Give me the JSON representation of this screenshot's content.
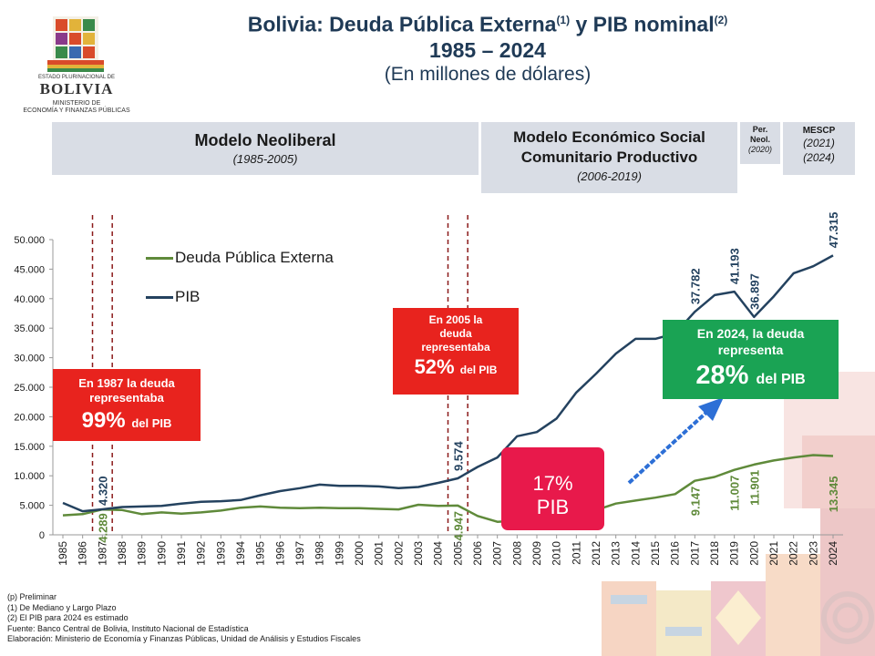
{
  "logo": {
    "top_text": "ESTADO PLURINACIONAL DE",
    "country": "BOLIVIA",
    "ministry_line1": "MINISTERIO DE",
    "ministry_line2": "ECONOMÍA Y FINANZAS PÚBLICAS"
  },
  "header": {
    "title_main": "Bolivia: Deuda Pública Externa",
    "title_sup1": "(1)",
    "title_mid": " y PIB nominal",
    "title_sup2": "(2)",
    "years": "1985 – 2024",
    "units": "(En millones de dólares)"
  },
  "periods": [
    {
      "name": "Modelo Neoliberal",
      "years": "(1985-2005)"
    },
    {
      "name_line1": "Modelo Económico Social",
      "name_line2": "Comunitario Productivo",
      "years": "(2006-2019)"
    },
    {
      "name_line1": "Per.",
      "name_line2": "Neol.",
      "years": "(2020)"
    },
    {
      "name": "MESCP",
      "years_line1": "(2021)",
      "years_line2": "(2024)"
    }
  ],
  "callouts": {
    "c1987": {
      "line1": "En 1987 la deuda",
      "line2": "representaba",
      "pct": "99%",
      "suffix": "del PIB"
    },
    "c2005": {
      "line1": "En 2005 la",
      "line2": "deuda",
      "line3": "representaba",
      "pct": "52%",
      "suffix": "del PIB"
    },
    "c2024": {
      "line1": "En 2024, la deuda",
      "line2": "representa",
      "pct": "28%",
      "suffix": "del PIB"
    },
    "c2014": {
      "line1": "17%",
      "line2": "PIB"
    }
  },
  "notes": [
    "(p) Preliminar",
    "(1) De Mediano y Largo Plazo",
    "(2) El PIB  para 2024 es estimado",
    "Fuente: Banco Central de Bolivia, Instituto Nacional de Estadística",
    "Elaboración: Ministerio de Economía  y Finanzas Públicas, Unidad de Análisis y Estudios Fiscales"
  ],
  "colors": {
    "debt": "#5f8a3a",
    "gdp": "#24425f",
    "callout_red": "#e8231e",
    "callout_green": "#1aa354",
    "callout_pink": "#e8194b",
    "period_bg": "#d9dde5",
    "dashed": "#8b1a1a",
    "arrow": "#2d6fd6"
  },
  "chart_data": {
    "type": "line",
    "x": [
      1985,
      1986,
      1987,
      1988,
      1989,
      1990,
      1991,
      1992,
      1993,
      1994,
      1995,
      1996,
      1997,
      1998,
      1999,
      2000,
      2001,
      2002,
      2003,
      2004,
      2005,
      2006,
      2007,
      2008,
      2009,
      2010,
      2011,
      2012,
      2013,
      2014,
      2015,
      2016,
      2017,
      2018,
      2019,
      2020,
      2021,
      2022,
      2023,
      2024
    ],
    "ylim": [
      0,
      50000
    ],
    "yticks": [
      0,
      5000,
      10000,
      15000,
      20000,
      25000,
      30000,
      35000,
      40000,
      45000,
      50000
    ],
    "ytick_labels": [
      "0",
      "5.000",
      "10.000",
      "15.000",
      "20.000",
      "25.000",
      "30.000",
      "35.000",
      "40.000",
      "45.000",
      "50.000"
    ],
    "xtick_labels": [
      "1985",
      "1986",
      "1987",
      "1988",
      "1989",
      "1990",
      "1991",
      "1992",
      "1993",
      "1994",
      "1995",
      "1996",
      "1997",
      "1998",
      "1999",
      "2000",
      "2001",
      "2002",
      "2003",
      "2004",
      "2005",
      "2006",
      "2007",
      "2008",
      "2009",
      "2010",
      "2011",
      "2012",
      "2013",
      "2014",
      "2015",
      "2016",
      "2017",
      "2018",
      "2019",
      "2020",
      "2021",
      "2022",
      "2023",
      "2024"
    ],
    "grid": false,
    "legend_position": "top-left",
    "series": [
      {
        "name": "Deuda Pública Externa",
        "values": [
          3300,
          3500,
          4289,
          4200,
          3500,
          3800,
          3600,
          3800,
          4100,
          4600,
          4800,
          4600,
          4500,
          4600,
          4500,
          4500,
          4400,
          4300,
          5100,
          4900,
          4947,
          3200,
          2200,
          2400,
          2600,
          2800,
          3400,
          4200,
          5300,
          5800,
          6300,
          6900,
          9147,
          9800,
          11007,
          11901,
          12600,
          13100,
          13500,
          13345
        ]
      },
      {
        "name": "PIB",
        "values": [
          5400,
          4000,
          4320,
          4700,
          4800,
          4900,
          5300,
          5600,
          5700,
          5900,
          6700,
          7400,
          7900,
          8500,
          8300,
          8300,
          8200,
          7900,
          8100,
          8800,
          9574,
          11500,
          13100,
          16700,
          17400,
          19700,
          24100,
          27300,
          30700,
          33200,
          33200,
          34100,
          37782,
          40600,
          41193,
          36897,
          40400,
          44300,
          45500,
          47315
        ]
      }
    ],
    "data_labels": [
      {
        "series": "Deuda Pública Externa",
        "x": 1987,
        "text": "4.289"
      },
      {
        "series": "PIB",
        "x": 1987,
        "text": "4.320"
      },
      {
        "series": "Deuda Pública Externa",
        "x": 2005,
        "text": "4.947"
      },
      {
        "series": "PIB",
        "x": 2005,
        "text": "9.574"
      },
      {
        "series": "Deuda Pública Externa",
        "x": 2017,
        "text": "9.147"
      },
      {
        "series": "PIB",
        "x": 2017,
        "text": "37.782"
      },
      {
        "series": "Deuda Pública Externa",
        "x": 2019,
        "text": "11.007"
      },
      {
        "series": "PIB",
        "x": 2019,
        "text": "41.193"
      },
      {
        "series": "Deuda Pública Externa",
        "x": 2020,
        "text": "11.901"
      },
      {
        "series": "PIB",
        "x": 2020,
        "text": "36.897"
      },
      {
        "series": "Deuda Pública Externa",
        "x": 2024,
        "text": "13.345"
      },
      {
        "series": "PIB",
        "x": 2024,
        "text": "47.315"
      }
    ],
    "reference_lines": [
      1986.5,
      1987.5,
      2004.5,
      2005.5
    ]
  }
}
